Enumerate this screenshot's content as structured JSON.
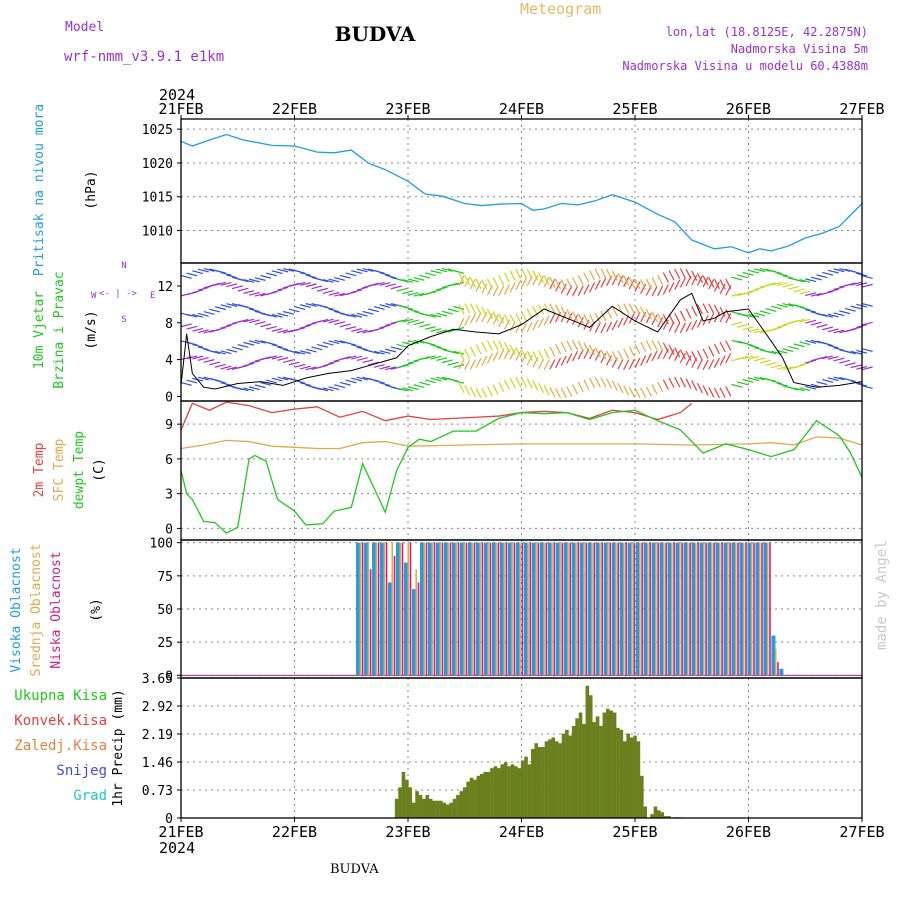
{
  "header": {
    "title": "BUDVA",
    "model_label": "Model",
    "model_name": "wrf-nmm_v3.9.1 e1km",
    "meteogram": "Meteogram",
    "lonlat": "lon,lat (18.8125E, 42.2875N)",
    "altitude": "Nadmorska Visina 5m",
    "altitude_model": "Nadmorska Visina u modelu 60.4388m",
    "credit": "made by Angel",
    "footer": "BUDVA"
  },
  "colors": {
    "pressure": "#1e9ee0",
    "temp2m": "#e34040",
    "sfc": "#e4a84a",
    "dewpt": "#20c820",
    "cloud_high": "#1e9ee0",
    "cloud_mid": "#e4a84a",
    "cloud_low": "#d0207a",
    "precip": "#6b7f1e",
    "precip_conv": "#20c820",
    "wind_speed": "#000000",
    "wind_label": "#20c820",
    "compass": "#9b30d0"
  },
  "chart_data": [
    {
      "type": "line",
      "panel": "pressure",
      "ylabel_main": "Pritisak na nivou mora",
      "ylabel_unit": "(hPa)",
      "x_top_year": "2024",
      "x_ticks": [
        "21FEB",
        "22FEB",
        "23FEB",
        "24FEB",
        "25FEB",
        "26FEB",
        "27FEB"
      ],
      "ylim": [
        1005.2,
        1026.5
      ],
      "y_ticks": [
        1010,
        1015,
        1020,
        1025
      ],
      "series": [
        {
          "name": "",
          "x": [
            0,
            0.1,
            0.25,
            0.4,
            0.55,
            0.8,
            1.0,
            1.2,
            1.35,
            1.5,
            1.65,
            1.8,
            2.0,
            2.15,
            2.3,
            2.5,
            2.65,
            2.8,
            3.0,
            3.1,
            3.2,
            3.35,
            3.5,
            3.65,
            3.8,
            4.0,
            4.2,
            4.35,
            4.5,
            4.7,
            4.85,
            5.0,
            5.1,
            5.2,
            5.35,
            5.5,
            5.65,
            5.8,
            6.0
          ],
          "values": [
            1023.2,
            1022.5,
            1023.4,
            1024.2,
            1023.4,
            1022.6,
            1022.5,
            1021.6,
            1021.5,
            1021.9,
            1020.0,
            1019.0,
            1017.3,
            1015.4,
            1015.1,
            1014.0,
            1013.7,
            1013.9,
            1014.0,
            1013.0,
            1013.2,
            1014.0,
            1013.8,
            1014.4,
            1015.3,
            1014.2,
            1012.4,
            1011.3,
            1008.6,
            1007.3,
            1007.6,
            1006.7,
            1007.3,
            1007.0,
            1007.7,
            1008.9,
            1009.6,
            1010.6,
            1014.0
          ]
        }
      ]
    },
    {
      "type": "line",
      "panel": "wind",
      "ylabel_main": "10m Vjetar",
      "ylabel_main2": "Brzina i Pravac",
      "ylabel_unit": "(m/s)",
      "compass": {
        "n": "N",
        "s": "S",
        "e": "E",
        "w": "W"
      },
      "ylim": [
        -0.5,
        14.5
      ],
      "y_ticks": [
        0,
        4,
        8,
        12
      ],
      "series": [
        {
          "name": "",
          "x": [
            0,
            0.05,
            0.1,
            0.2,
            0.3,
            0.5,
            0.7,
            0.9,
            1.1,
            1.3,
            1.5,
            1.7,
            1.9,
            2.0,
            2.2,
            2.4,
            2.6,
            2.8,
            3.0,
            3.2,
            3.4,
            3.6,
            3.8,
            4.0,
            4.2,
            4.4,
            4.5,
            4.6,
            4.7,
            4.8,
            5.0,
            5.2,
            5.3,
            5.4,
            5.6,
            5.8,
            6.0
          ],
          "values": [
            1.2,
            6.8,
            2.5,
            1.0,
            0.8,
            1.4,
            1.6,
            1.2,
            2.0,
            2.5,
            2.8,
            3.5,
            4.2,
            5.5,
            6.5,
            7.3,
            7.0,
            6.8,
            7.8,
            9.5,
            8.5,
            7.5,
            9.8,
            8.2,
            7.0,
            10.5,
            11.2,
            8.2,
            8.5,
            9.2,
            9.5,
            6.0,
            4.2,
            1.5,
            1.0,
            1.2,
            1.6
          ]
        }
      ]
    },
    {
      "type": "line",
      "panel": "temperature",
      "ylabel_main": "2m Temp",
      "ylabel_main2": "SFC Temp",
      "ylabel_main3": "dewpt Temp",
      "ylabel_unit": "(C)",
      "ylim": [
        -1.0,
        11.0
      ],
      "y_ticks": [
        0,
        3,
        6,
        9
      ],
      "series": [
        {
          "name": "2m Temp",
          "x": [
            0,
            0.1,
            0.25,
            0.4,
            0.6,
            0.8,
            1.0,
            1.2,
            1.4,
            1.6,
            1.8,
            2.0,
            2.2,
            2.4,
            2.6,
            2.8,
            3.0,
            3.2,
            3.4,
            3.6,
            3.8,
            4.0,
            4.2,
            4.4,
            4.5
          ],
          "values": [
            8.5,
            10.8,
            10.2,
            10.9,
            10.6,
            10.0,
            10.3,
            10.5,
            9.6,
            10.1,
            9.3,
            9.7,
            9.4,
            9.5,
            9.6,
            9.7,
            10.0,
            10.1,
            10.0,
            9.5,
            10.2,
            10.0,
            9.4,
            10.0,
            10.8
          ]
        },
        {
          "name": "SFC Temp",
          "x": [
            0,
            0.2,
            0.4,
            0.6,
            0.8,
            1.0,
            1.2,
            1.4,
            1.6,
            1.8,
            2.0,
            2.5,
            3.0,
            3.5,
            4.0,
            4.5,
            5.0,
            5.2,
            5.4,
            5.6,
            5.8,
            6.0
          ],
          "values": [
            6.9,
            7.2,
            7.6,
            7.5,
            7.1,
            7.0,
            6.9,
            6.9,
            7.4,
            7.5,
            7.1,
            7.2,
            7.3,
            7.3,
            7.3,
            7.2,
            7.3,
            7.4,
            7.2,
            7.9,
            7.8,
            7.2
          ]
        },
        {
          "name": "dewpt Temp",
          "x": [
            0,
            0.05,
            0.1,
            0.2,
            0.3,
            0.4,
            0.5,
            0.6,
            0.65,
            0.75,
            0.85,
            1.0,
            1.1,
            1.25,
            1.35,
            1.5,
            1.6,
            1.7,
            1.8,
            1.9,
            2.0,
            2.1,
            2.2,
            2.4,
            2.6,
            2.8,
            3.0,
            3.2,
            3.4,
            3.6,
            3.8,
            4.0,
            4.2,
            4.4,
            4.6,
            4.8,
            5.0,
            5.2,
            5.4,
            5.6,
            5.8,
            5.9,
            6.0
          ],
          "values": [
            5.0,
            3.0,
            2.5,
            0.6,
            0.5,
            -0.4,
            0.1,
            6.0,
            6.3,
            5.8,
            2.5,
            1.5,
            0.3,
            0.4,
            1.5,
            1.8,
            5.6,
            3.5,
            1.4,
            5.0,
            7.0,
            7.7,
            7.5,
            8.4,
            8.4,
            9.5,
            10.0,
            9.9,
            10.0,
            9.4,
            10.0,
            10.2,
            9.3,
            8.5,
            6.5,
            7.3,
            6.8,
            6.2,
            6.8,
            9.3,
            8.0,
            6.5,
            4.4
          ]
        }
      ]
    },
    {
      "type": "bar",
      "panel": "clouds",
      "ylabel_main": "Visoka Oblacnost",
      "ylabel_main2": "Srednja Oblacnost",
      "ylabel_main3": "Niska Oblacnost",
      "ylabel_unit": "(%)",
      "ylim": [
        -2,
        102
      ],
      "y_ticks": [
        0,
        25,
        50,
        75,
        100
      ],
      "cloudy_range_days": [
        1.56,
        5.29
      ],
      "series": [
        {
          "name": "Visoka Oblacnost",
          "values": [
            100,
            100,
            100,
            100,
            70,
            100,
            85,
            65,
            100,
            100,
            100,
            100,
            100,
            100,
            100,
            100,
            100,
            100,
            100,
            100,
            100,
            100,
            100,
            100,
            100,
            100,
            100,
            100,
            100,
            100,
            100,
            100,
            100,
            100,
            100,
            100,
            100,
            100,
            100,
            100,
            100,
            100,
            100,
            100,
            100,
            100,
            100,
            100,
            100,
            100,
            100,
            100,
            30,
            5
          ]
        },
        {
          "name": "Srednja Oblacnost",
          "values": [
            100,
            100,
            100,
            100,
            100,
            100,
            100,
            80,
            100,
            100,
            100,
            100,
            100,
            100,
            100,
            100,
            100,
            100,
            100,
            100,
            100,
            100,
            100,
            100,
            100,
            100,
            100,
            100,
            100,
            100,
            100,
            100,
            100,
            100,
            100,
            100,
            100,
            100,
            100,
            100,
            100,
            100,
            100,
            100,
            100,
            100,
            100,
            100,
            100,
            100,
            100,
            100,
            20,
            0
          ]
        },
        {
          "name": "Niska Oblacnost",
          "values": [
            100,
            80,
            100,
            100,
            90,
            100,
            100,
            70,
            100,
            100,
            100,
            100,
            100,
            100,
            100,
            100,
            100,
            100,
            100,
            100,
            100,
            100,
            100,
            100,
            100,
            100,
            100,
            100,
            100,
            100,
            100,
            100,
            100,
            100,
            100,
            100,
            100,
            100,
            100,
            100,
            100,
            100,
            100,
            100,
            100,
            100,
            100,
            100,
            100,
            100,
            100,
            100,
            10,
            0
          ]
        }
      ]
    },
    {
      "type": "bar",
      "panel": "precip",
      "legend": [
        "Ukupna Kisa",
        "Konvek.Kisa",
        "Zaledj.Kisa",
        "Snijeg",
        "Grad"
      ],
      "ylabel_main": "1hr Precip (mm)",
      "ylim": [
        0,
        3.65
      ],
      "y_ticks": [
        0,
        0.73,
        1.46,
        2.19,
        2.92,
        3.65
      ],
      "y_tick_labels": [
        "0",
        "0.73",
        "1.46",
        "2.19",
        "2.92",
        "3.65"
      ],
      "x_bottom_year": "2024",
      "x_ticks": [
        "21FEB",
        "22FEB",
        "23FEB",
        "24FEB",
        "25FEB",
        "26FEB",
        "27FEB"
      ],
      "series": [
        {
          "name": "Ukupna Kisa",
          "x": [
            1.9,
            1.93,
            1.96,
            1.99,
            2.02,
            2.05,
            2.08,
            2.11,
            2.14,
            2.17,
            2.2,
            2.23,
            2.26,
            2.29,
            2.32,
            2.35,
            2.38,
            2.41,
            2.44,
            2.47,
            2.5,
            2.53,
            2.56,
            2.59,
            2.62,
            2.65,
            2.68,
            2.71,
            2.74,
            2.77,
            2.8,
            2.83,
            2.86,
            2.89,
            2.92,
            2.95,
            2.98,
            3.01,
            3.04,
            3.07,
            3.1,
            3.13,
            3.16,
            3.19,
            3.22,
            3.25,
            3.28,
            3.31,
            3.34,
            3.37,
            3.4,
            3.43,
            3.46,
            3.49,
            3.52,
            3.55,
            3.58,
            3.61,
            3.64,
            3.67,
            3.7,
            3.73,
            3.76,
            3.79,
            3.82,
            3.85,
            3.88,
            3.91,
            3.94,
            3.97,
            4.0,
            4.03,
            4.06,
            4.09,
            4.12,
            4.15,
            4.18,
            4.21,
            4.24,
            4.27,
            4.3,
            4.33,
            4.36,
            4.39,
            4.42,
            4.45,
            4.48,
            4.51,
            4.54,
            4.57,
            4.6,
            4.63,
            4.66,
            4.69,
            4.72,
            4.75,
            4.78,
            4.81,
            4.84,
            4.87,
            4.9,
            4.93,
            4.96,
            4.99,
            5.02,
            5.05,
            5.08,
            5.11,
            5.14
          ],
          "values": [
            0.5,
            0.8,
            1.2,
            1.0,
            0.8,
            0.4,
            0.7,
            0.6,
            0.5,
            0.6,
            0.5,
            0.45,
            0.45,
            0.45,
            0.4,
            0.35,
            0.4,
            0.5,
            0.6,
            0.7,
            0.8,
            0.95,
            1.05,
            1.0,
            1.1,
            1.15,
            1.2,
            1.2,
            1.3,
            1.35,
            1.3,
            1.4,
            1.45,
            1.35,
            1.4,
            1.35,
            1.3,
            1.5,
            1.6,
            1.4,
            1.8,
            1.95,
            1.85,
            1.85,
            2.0,
            2.05,
            2.1,
            2.0,
            1.95,
            2.2,
            2.3,
            2.15,
            2.4,
            2.6,
            2.75,
            2.45,
            3.45,
            3.2,
            2.5,
            2.65,
            2.4,
            2.75,
            2.85,
            2.8,
            2.75,
            2.35,
            2.3,
            2.0,
            2.2,
            2.1,
            2.15,
            2.0,
            1.1,
            0.3,
            0.0,
            0.1,
            0.3,
            0.2,
            0.15,
            0.05,
            0.05,
            0.0,
            0.02,
            0.02,
            0.0,
            0.0,
            0.0,
            0.0,
            0.0,
            0.0,
            0.0,
            0.0,
            0.0,
            0.0,
            0.0,
            0.0,
            0.0,
            0.0,
            0.0,
            0.0,
            0.0,
            0.0,
            0.0,
            0.0,
            0.0,
            0.0,
            0.0,
            0.0,
            0.0
          ]
        }
      ]
    }
  ]
}
